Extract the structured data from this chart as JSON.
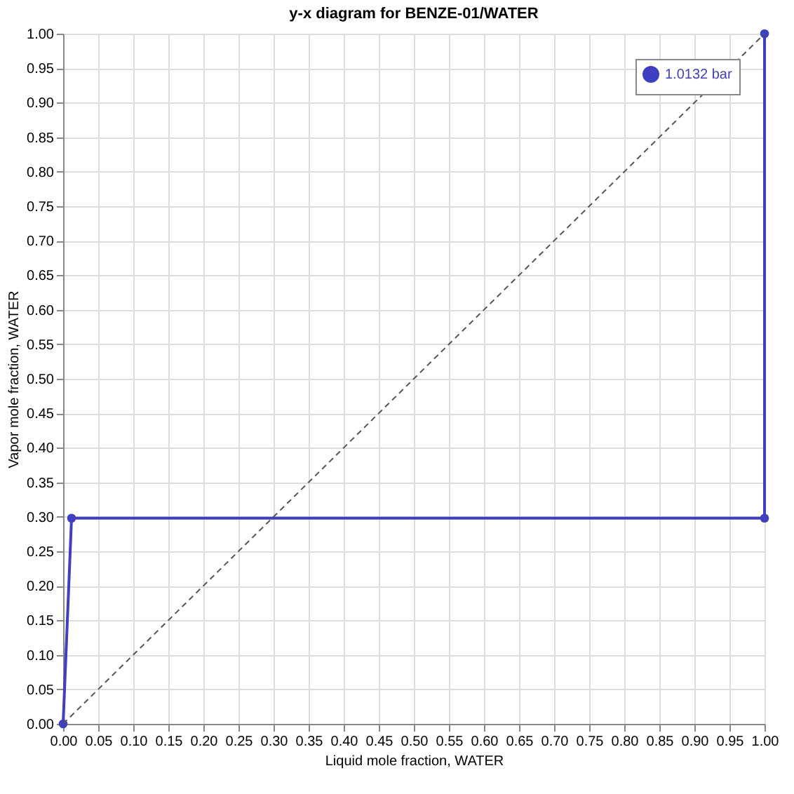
{
  "chart_data": {
    "type": "line",
    "title": "y-x diagram for BENZE-01/WATER",
    "xlabel": "Liquid mole fraction, WATER",
    "ylabel": "Vapor mole fraction, WATER",
    "series": [
      {
        "name": "1.0132 bar",
        "color": "#3f3fbf",
        "x": [
          0,
          0.012,
          1,
          1
        ],
        "values": [
          0,
          0.298,
          0.298,
          1
        ],
        "marker": "circle",
        "line_style": "solid"
      },
      {
        "color": "#555555",
        "x": [
          0,
          1
        ],
        "values": [
          0,
          1
        ],
        "marker": "none",
        "line_style": "dashed"
      }
    ],
    "xlim": [
      0,
      1
    ],
    "ylim": [
      0,
      1
    ],
    "xticks": [
      {
        "value": 0,
        "label": "0.00"
      },
      0.05,
      {
        "value": 0.1,
        "label": "0.10"
      },
      0.15,
      {
        "value": 0.2,
        "label": "0.20"
      },
      0.25,
      {
        "value": 0.3,
        "label": "0.30"
      },
      0.35,
      {
        "value": 0.4,
        "label": "0.40"
      },
      0.45,
      {
        "value": 0.5,
        "label": "0.50"
      },
      0.55,
      {
        "value": 0.6,
        "label": "0.60"
      },
      0.65,
      {
        "value": 0.7,
        "label": "0.70"
      },
      0.75,
      {
        "value": 0.8,
        "label": "0.80"
      },
      0.85,
      {
        "value": 0.9,
        "label": "0.90"
      },
      0.95,
      {
        "value": 1,
        "label": "1.00"
      }
    ],
    "yticks": [
      {
        "value": 0,
        "label": "0.00"
      },
      0.05,
      {
        "value": 0.1,
        "label": "0.10"
      },
      0.15,
      {
        "value": 0.2,
        "label": "0.20"
      },
      0.25,
      {
        "value": 0.3,
        "label": "0.30"
      },
      0.35,
      {
        "value": 0.4,
        "label": "0.40"
      },
      0.45,
      {
        "value": 0.5,
        "label": "0.50"
      },
      0.55,
      {
        "value": 0.6,
        "label": "0.60"
      },
      0.65,
      {
        "value": 0.7,
        "label": "0.70"
      },
      0.75,
      {
        "value": 0.8,
        "label": "0.80"
      },
      0.85,
      {
        "value": 0.9,
        "label": "0.90"
      },
      0.95,
      {
        "value": 1,
        "label": "1.00"
      }
    ],
    "grid": true,
    "legend": "top right"
  }
}
